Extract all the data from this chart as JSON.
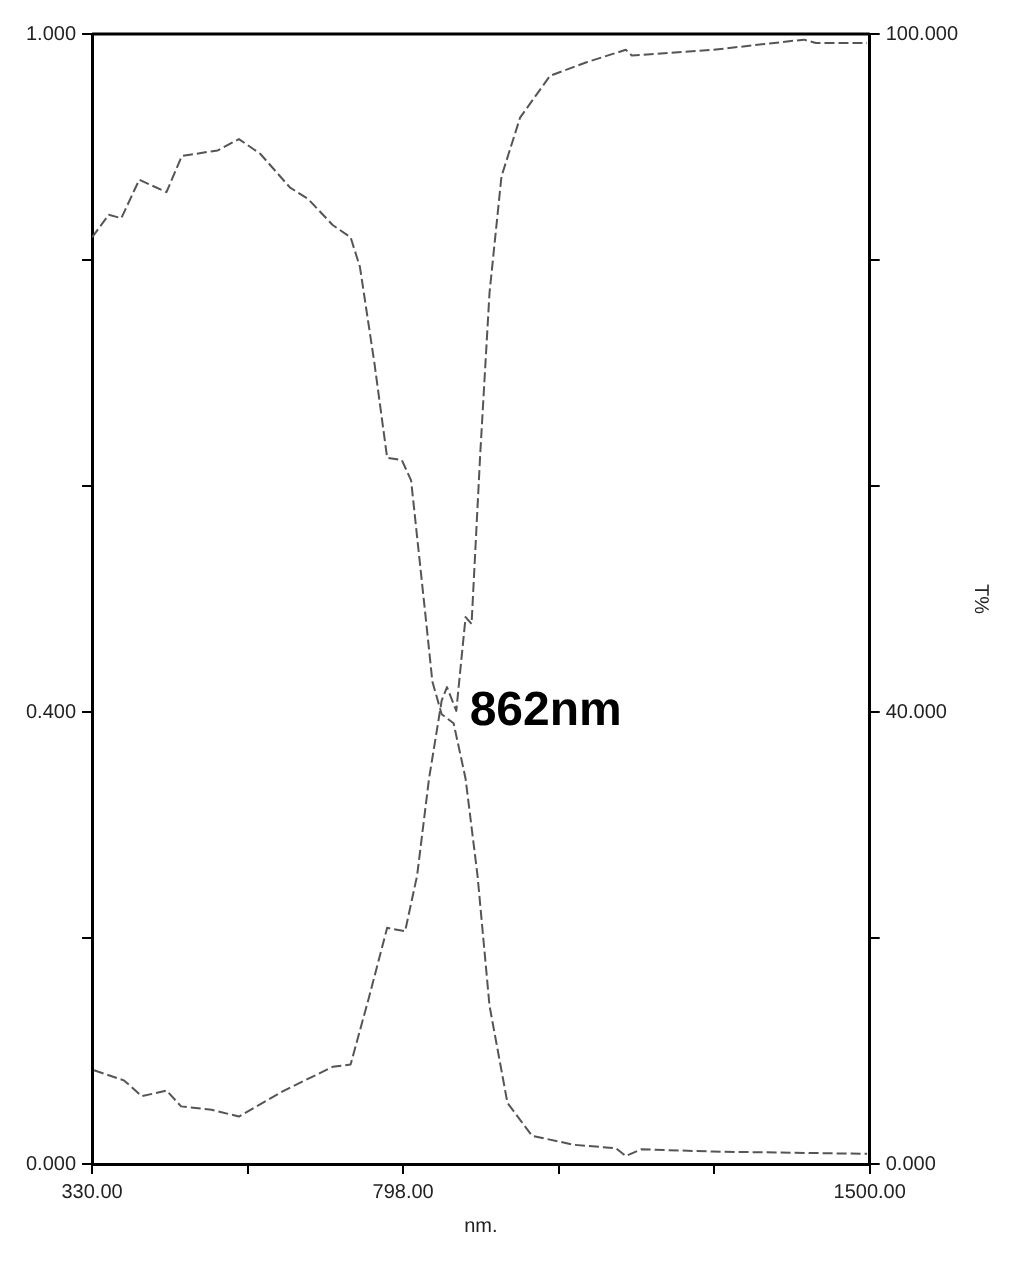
{
  "chart_data": {
    "type": "line",
    "xlabel": "nm.",
    "y2label": "T%",
    "xlim": [
      330,
      1500
    ],
    "xticks": [
      {
        "value": 330,
        "label": "330.00"
      },
      {
        "value": 564,
        "label": null
      },
      {
        "value": 798,
        "label": "798.00"
      },
      {
        "value": 1032,
        "label": null
      },
      {
        "value": 1266,
        "label": null
      },
      {
        "value": 1500,
        "label": "1500.00"
      }
    ],
    "ylim": [
      0,
      1
    ],
    "yticks": [
      {
        "value": 0,
        "label": "0.000"
      },
      {
        "value": 0.2,
        "label": null
      },
      {
        "value": 0.4,
        "label": "0.400"
      },
      {
        "value": 0.6,
        "label": null
      },
      {
        "value": 0.8,
        "label": null
      },
      {
        "value": 1,
        "label": "1.000"
      }
    ],
    "y2lim": [
      0,
      100
    ],
    "y2ticks": [
      {
        "value": 0,
        "label": "0.000"
      },
      {
        "value": 20,
        "label": null
      },
      {
        "value": 40,
        "label": "40.000"
      },
      {
        "value": 60,
        "label": null
      },
      {
        "value": 80,
        "label": null
      },
      {
        "value": 100,
        "label": "100.000"
      }
    ],
    "line_style": "dashed",
    "marker": "none",
    "series": [
      {
        "color": "#555555",
        "x": [
          330,
          355,
          374,
          401,
          442,
          465,
          519,
          551,
          583,
          628,
          655,
          692,
          719,
          733,
          755,
          774,
          796,
          810,
          833,
          842,
          856,
          874,
          892,
          910,
          928,
          955,
          992,
          1055,
          1118,
          1133,
          1156,
          1264,
          1496
        ],
        "values": [
          0.82,
          0.84,
          0.837,
          0.871,
          0.86,
          0.892,
          0.897,
          0.907,
          0.894,
          0.864,
          0.854,
          0.831,
          0.82,
          0.794,
          0.708,
          0.625,
          0.623,
          0.605,
          0.478,
          0.427,
          0.398,
          0.39,
          0.341,
          0.255,
          0.14,
          0.054,
          0.025,
          0.017,
          0.014,
          0.007,
          0.013,
          0.011,
          0.009
        ]
      },
      {
        "color": "#555555",
        "axis": "y2",
        "x": [
          333,
          378,
          405,
          442,
          464,
          510,
          551,
          619,
          692,
          719,
          746,
          774,
          801,
          819,
          837,
          856,
          864,
          878,
          892,
          901,
          914,
          928,
          946,
          974,
          1019,
          1074,
          1133,
          1142,
          1264,
          1401,
          1419,
          1496
        ],
        "values": [
          8.3,
          7.4,
          6.0,
          6.5,
          5.1,
          4.8,
          4.2,
          6.5,
          8.6,
          8.8,
          14.6,
          20.9,
          20.6,
          25.5,
          34.1,
          41.0,
          42.2,
          40.1,
          48.4,
          47.8,
          62.8,
          77.1,
          87.4,
          92.6,
          96.3,
          97.5,
          98.6,
          98.1,
          98.6,
          99.5,
          99.2,
          99.2
        ]
      }
    ],
    "annotations": [
      {
        "text": "862nm",
        "x": 862,
        "y": 0.4
      }
    ]
  }
}
